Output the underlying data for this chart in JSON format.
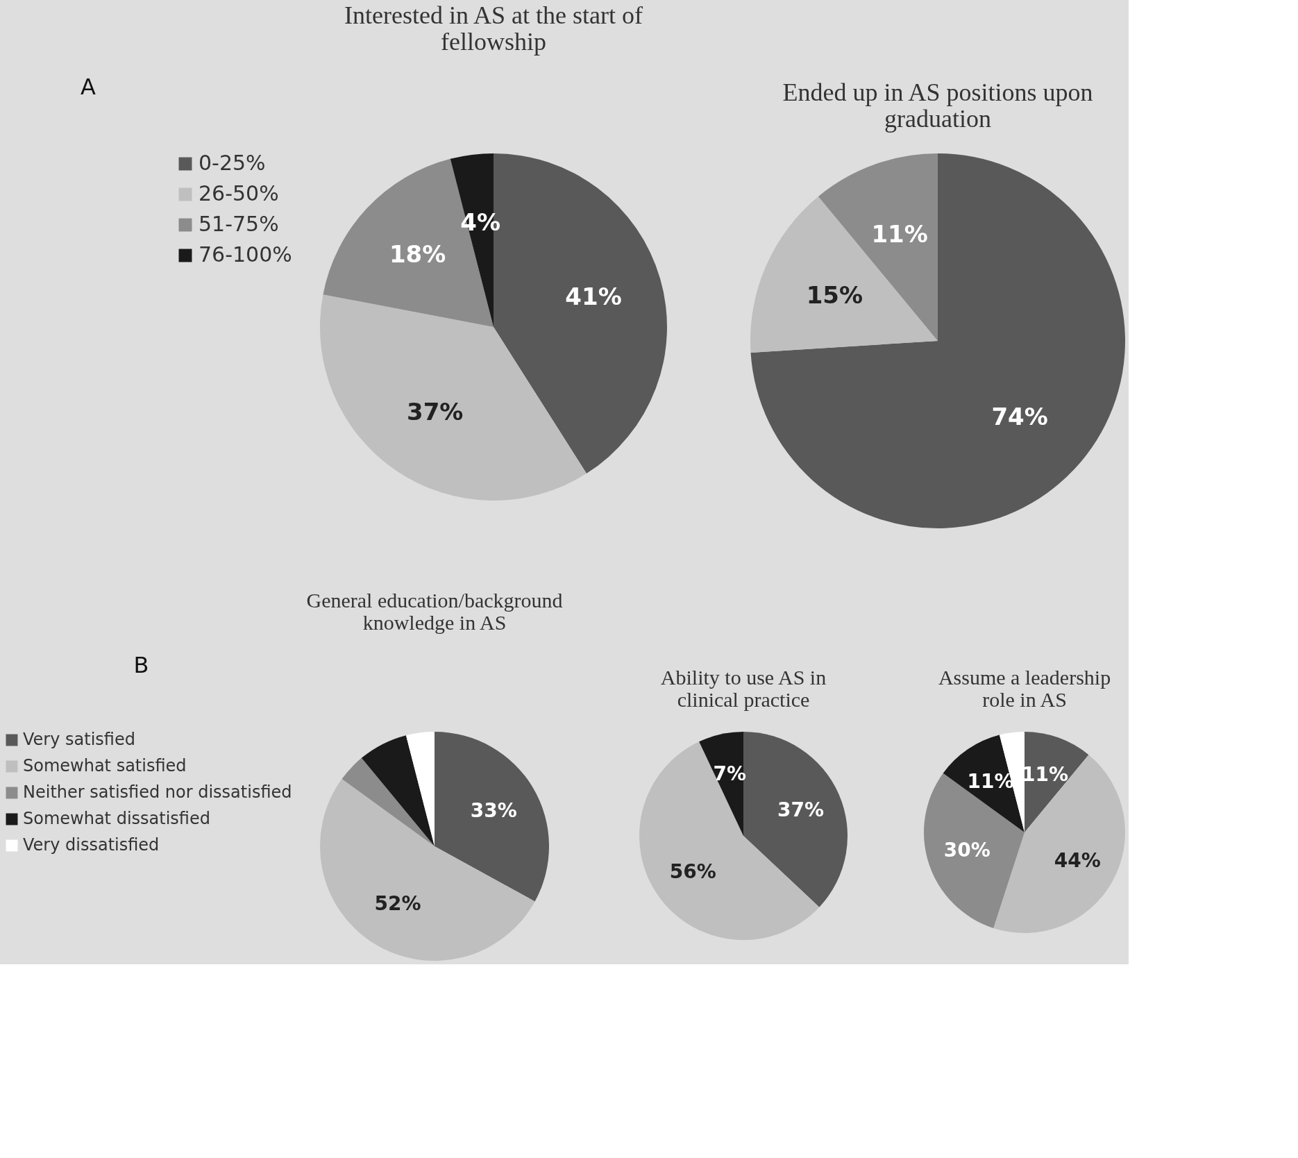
{
  "chart_data": [
    {
      "type": "pie",
      "title": "Interested in AS at the start of fellowship",
      "annotations": [
        "A"
      ],
      "legend": "left",
      "categories": [
        "0-25%",
        "26-50%",
        "51-75%",
        "76-100%"
      ],
      "values": [
        41,
        37,
        18,
        4
      ],
      "value_labels": [
        "41%",
        "37%",
        "18%",
        "4%"
      ],
      "colors": [
        "#595959",
        "#bfbfbf",
        "#8c8c8c",
        "#1a1a1a"
      ]
    },
    {
      "type": "pie",
      "title": "Ended up in AS positions upon graduation",
      "categories": [
        null,
        null,
        null,
        null
      ],
      "values": [
        74,
        15,
        11,
        0
      ],
      "value_labels": [
        "74%",
        "15%",
        "11%",
        null
      ],
      "colors": [
        "#595959",
        "#bfbfbf",
        "#8c8c8c",
        "#1a1a1a"
      ]
    },
    {
      "type": "pie",
      "title": "General education/background knowledge in AS",
      "annotations": [
        "B"
      ],
      "legend": "left",
      "categories": [
        "Very satisfied",
        "Somewhat satisfied",
        "Neither satisfied nor dissatisfied",
        "Somewhat dissatisfied",
        "Very dissatisfied"
      ],
      "values": [
        33,
        52,
        4,
        7,
        4
      ],
      "value_labels": [
        "33%",
        "52%",
        null,
        null,
        null
      ],
      "colors": [
        "#595959",
        "#bfbfbf",
        "#8c8c8c",
        "#1a1a1a",
        "#ffffff"
      ]
    },
    {
      "type": "pie",
      "title": "Ability to use AS in clinical practice",
      "categories": [
        null,
        null,
        null,
        null,
        null
      ],
      "values": [
        37,
        56,
        0,
        7,
        0
      ],
      "value_labels": [
        "37%",
        "56%",
        null,
        "7%",
        null
      ],
      "colors": [
        "#595959",
        "#bfbfbf",
        "#8c8c8c",
        "#1a1a1a",
        "#ffffff"
      ]
    },
    {
      "type": "pie",
      "title": "Assume a leadership role in AS",
      "categories": [
        null,
        null,
        null,
        null,
        null
      ],
      "values": [
        11,
        44,
        30,
        11,
        4
      ],
      "value_labels": [
        "11%",
        "44%",
        "30%",
        "11%",
        null
      ],
      "colors": [
        "#595959",
        "#bfbfbf",
        "#8c8c8c",
        "#1a1a1a",
        "#ffffff"
      ]
    }
  ]
}
